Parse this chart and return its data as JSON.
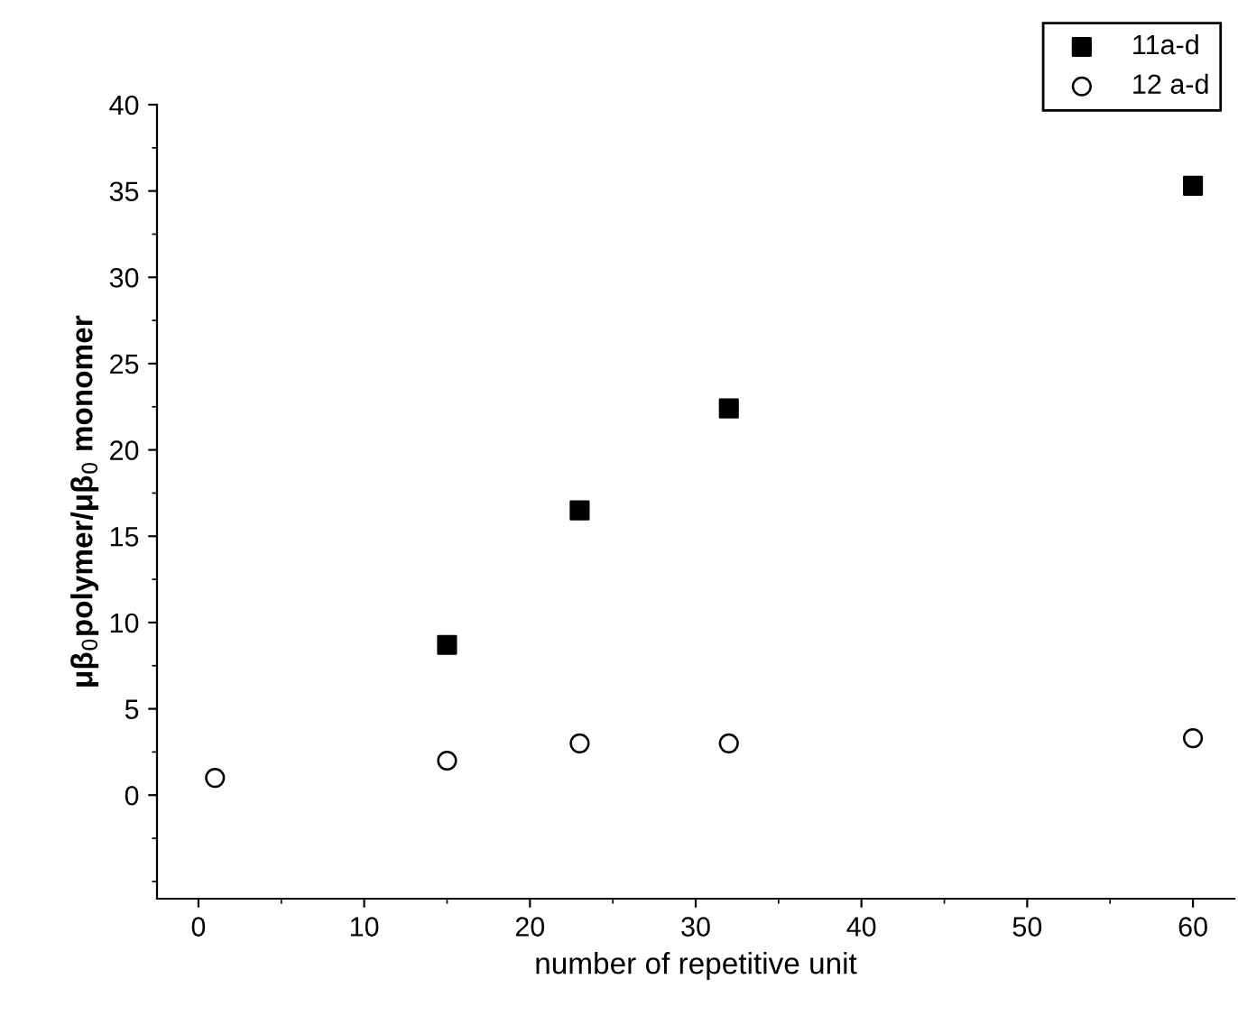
{
  "chart_data": {
    "type": "scatter",
    "xlabel": "number of repetitive unit",
    "ylabel": "μβ$_{0}$polymer/μβ$_{0}$ monomer",
    "series": [
      {
        "name": "11a-d",
        "color": "#000000",
        "marker": "square",
        "x": [
          15,
          23,
          32,
          60
        ],
        "values": [
          8.7,
          16.5,
          22.4,
          35.3
        ]
      },
      {
        "name": "12 a-d",
        "color": "#000000",
        "marker": "circle",
        "x": [
          1,
          15,
          23,
          32,
          60
        ],
        "values": [
          1,
          2,
          3,
          3,
          3.3
        ]
      }
    ],
    "xlim": [
      -2.5,
      62.5
    ],
    "xticks": [
      0,
      10,
      20,
      30,
      40,
      50,
      60
    ],
    "ylim": [
      -6,
      40
    ],
    "yticks": [
      0,
      5,
      10,
      15,
      20,
      25,
      30,
      35,
      40
    ],
    "grid": false,
    "legend": "top right"
  }
}
